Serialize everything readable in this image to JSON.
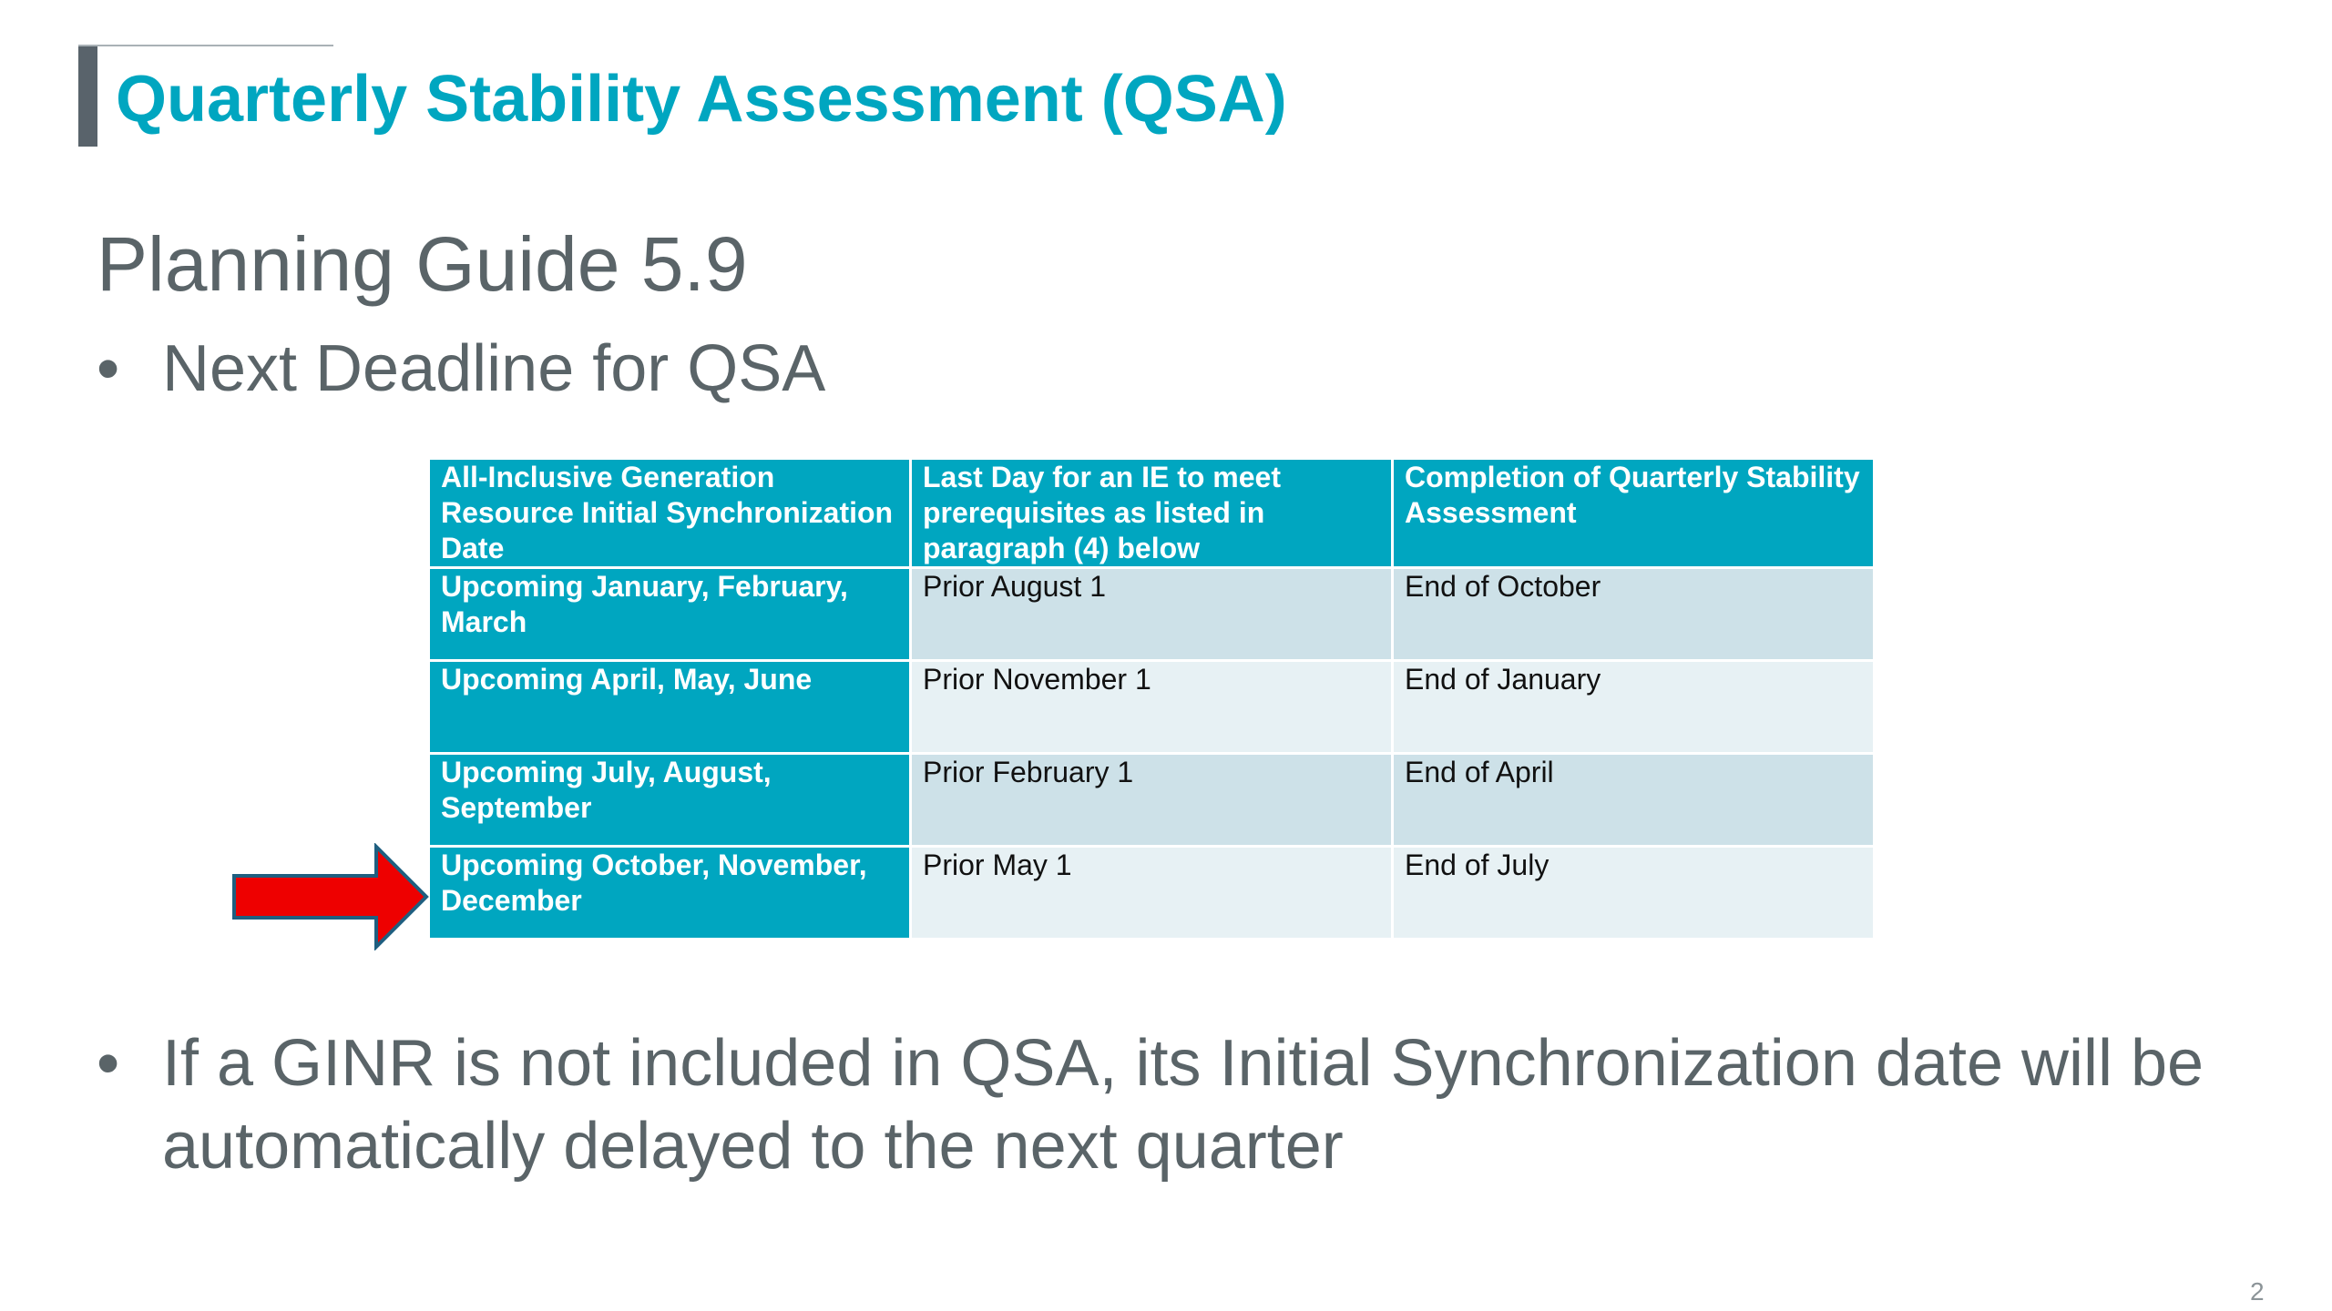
{
  "slide": {
    "title": "Quarterly Stability Assessment (QSA)",
    "subtitle": "Planning Guide 5.9",
    "bullets": [
      "Next Deadline for QSA",
      "If a GINR is not included in QSA, its Initial Synchronization date will be automatically delayed to the next quarter"
    ],
    "bullet_marker": "•",
    "page_number": "2"
  },
  "table": {
    "headers": [
      "All-Inclusive Generation Resource Initial Synchronization Date",
      "Last Day for an IE to meet prerequisites as listed in paragraph (4) below",
      "Completion of Quarterly Stability Assessment"
    ],
    "rows": [
      [
        "Upcoming January, February, March",
        "Prior August 1",
        "End of October"
      ],
      [
        "Upcoming April, May, June",
        "Prior November 1",
        "End of January"
      ],
      [
        "Upcoming July, August, September",
        "Prior February 1",
        "End of April"
      ],
      [
        "Upcoming October, November, December",
        "Prior May 1",
        "End of July"
      ]
    ]
  },
  "colors": {
    "accent_teal": "#00a6c0",
    "body_text": "#5a6468",
    "row_shade_a": "#cde1e8",
    "row_shade_b": "#e7f1f4",
    "arrow_red": "#ee0000",
    "arrow_outline": "#1f5f80"
  },
  "icons": {
    "arrow": "red-right-arrow-icon"
  }
}
